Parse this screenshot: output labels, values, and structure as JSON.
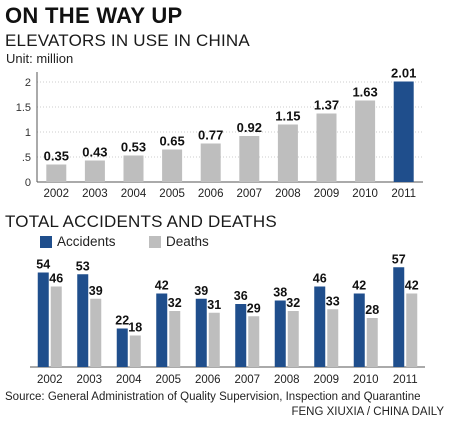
{
  "headline": "ON THE WAY UP",
  "footer": {
    "source": "Source: General Administration of Quality Supervision, Inspection and Quarantine",
    "credit": "FENG XIUXIA / CHINA DAILY"
  },
  "colors": {
    "dark": "#1f4e8c",
    "gray": "#bebebe",
    "axis": "#555555",
    "grid": "#cccccc"
  },
  "chart_data": [
    {
      "type": "bar",
      "title": "ELEVATORS IN USE IN CHINA",
      "subtitle": "Unit: million",
      "categories": [
        "2002",
        "2003",
        "2004",
        "2005",
        "2006",
        "2007",
        "2008",
        "2009",
        "2010",
        "2011"
      ],
      "series": [
        {
          "values": [
            0.35,
            0.43,
            0.53,
            0.65,
            0.77,
            0.92,
            1.15,
            1.37,
            1.63,
            2.01
          ]
        }
      ],
      "highlight_index": 9,
      "y_ticks": [
        0,
        0.5,
        1,
        1.5,
        2
      ],
      "y_tick_labels": [
        "0",
        ".5",
        "1",
        "1.5",
        "2"
      ],
      "ylim": [
        0,
        2.2
      ],
      "grid": true
    },
    {
      "type": "bar",
      "title": "TOTAL ACCIDENTS AND DEATHS",
      "categories": [
        "2002",
        "2003",
        "2004",
        "2005",
        "2006",
        "2007",
        "2008",
        "2009",
        "2010",
        "2011"
      ],
      "series": [
        {
          "name": "Accidents",
          "values": [
            54,
            53,
            22,
            42,
            39,
            36,
            38,
            46,
            42,
            57
          ]
        },
        {
          "name": "Deaths",
          "values": [
            46,
            39,
            18,
            32,
            31,
            29,
            32,
            33,
            28,
            42
          ]
        }
      ],
      "ylim": [
        0,
        60
      ],
      "grid": false,
      "legend_position": "top-left"
    }
  ]
}
